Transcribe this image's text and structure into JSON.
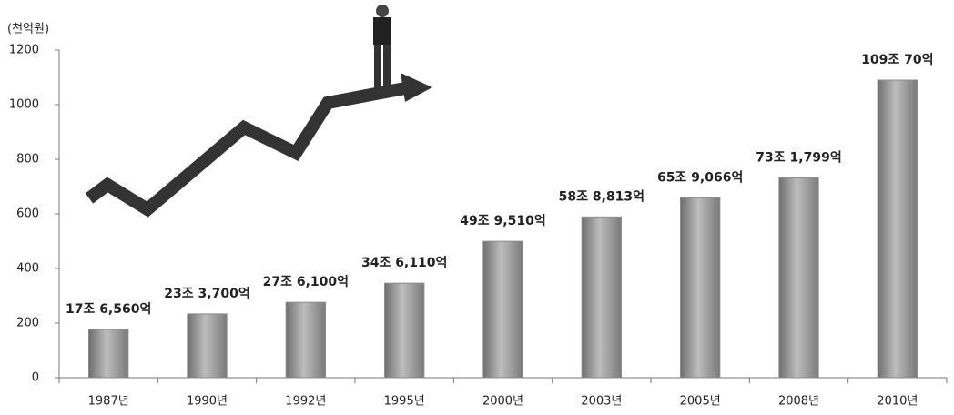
{
  "chart_data": {
    "type": "bar",
    "y_axis_label": "(천억원)",
    "categories": [
      "1987년",
      "1990년",
      "1992년",
      "1995년",
      "2000년",
      "2003년",
      "2005년",
      "2008년",
      "2010년"
    ],
    "values": [
      176.56,
      233.7,
      276.1,
      346.11,
      499.51,
      588.813,
      659.066,
      731.799,
      1090.07
    ],
    "value_labels": [
      "17조 6,560억",
      "23조 3,700억",
      "27조 6,100억",
      "34조 6,110억",
      "49조 9,510억",
      "58조 8,813억",
      "65조 9,066억",
      "73조 1,799억",
      "109조 70억"
    ],
    "color": "#8c8c8c",
    "ylim": [
      0,
      1200
    ],
    "yticks": [
      0,
      200,
      400,
      600,
      800,
      1000,
      1200
    ],
    "grid": false
  }
}
